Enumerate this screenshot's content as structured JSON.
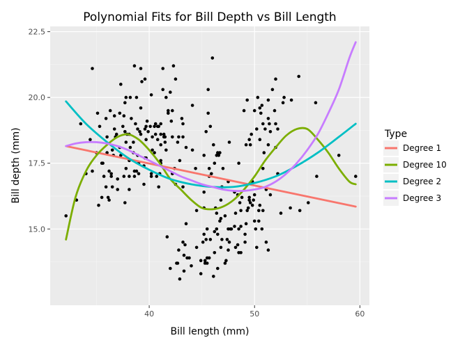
{
  "chart_data": {
    "type": "scatter",
    "title": "Polynomial Fits for Bill Depth vs Bill Length",
    "xlabel": "Bill length (mm)",
    "ylabel": "Bill depth (mm)",
    "xlim": [
      30.6,
      60.9
    ],
    "ylim": [
      12.1,
      22.7
    ],
    "x_ticks": [
      40,
      50,
      60
    ],
    "y_ticks": [
      15.0,
      17.5,
      20.0,
      22.5
    ],
    "x_tick_labels": [
      "40",
      "50",
      "60"
    ],
    "y_tick_labels": [
      "15.0",
      "17.5",
      "20.0",
      "22.5"
    ],
    "grid": true,
    "legend": {
      "title": "Type",
      "position": "right",
      "entries": [
        {
          "label": "Degree 1",
          "color": "#F8766D"
        },
        {
          "label": "Degree 10",
          "color": "#7CAE00"
        },
        {
          "label": "Degree 2",
          "color": "#00BFC4"
        },
        {
          "label": "Degree 3",
          "color": "#C77CFF"
        }
      ]
    },
    "points": [
      [
        32.1,
        15.5
      ],
      [
        33.1,
        16.1
      ],
      [
        33.5,
        19.0
      ],
      [
        34.0,
        17.1
      ],
      [
        34.4,
        18.4
      ],
      [
        34.6,
        21.1
      ],
      [
        34.6,
        17.2
      ],
      [
        35.0,
        17.9
      ],
      [
        35.1,
        19.4
      ],
      [
        35.2,
        15.9
      ],
      [
        35.3,
        18.9
      ],
      [
        35.5,
        17.5
      ],
      [
        35.5,
        16.2
      ],
      [
        35.6,
        17.5
      ],
      [
        35.7,
        17.0
      ],
      [
        35.9,
        19.2
      ],
      [
        35.9,
        16.6
      ],
      [
        36.0,
        17.9
      ],
      [
        36.0,
        18.5
      ],
      [
        36.1,
        16.2
      ],
      [
        36.2,
        16.1
      ],
      [
        36.2,
        17.2
      ],
      [
        36.3,
        19.5
      ],
      [
        36.4,
        17.1
      ],
      [
        36.4,
        17.0
      ],
      [
        36.5,
        16.6
      ],
      [
        36.5,
        18.0
      ],
      [
        36.6,
        17.8
      ],
      [
        36.7,
        19.3
      ],
      [
        36.7,
        18.8
      ],
      [
        36.8,
        18.5
      ],
      [
        36.9,
        18.6
      ],
      [
        37.0,
        16.9
      ],
      [
        37.0,
        16.5
      ],
      [
        37.2,
        18.1
      ],
      [
        37.2,
        19.4
      ],
      [
        37.3,
        17.8
      ],
      [
        37.3,
        20.5
      ],
      [
        37.5,
        18.9
      ],
      [
        37.6,
        19.3
      ],
      [
        37.6,
        17.0
      ],
      [
        37.7,
        18.7
      ],
      [
        37.7,
        16.0
      ],
      [
        37.7,
        19.8
      ],
      [
        37.8,
        18.3
      ],
      [
        37.8,
        17.3
      ],
      [
        37.8,
        20.0
      ],
      [
        37.9,
        18.6
      ],
      [
        38.1,
        18.6
      ],
      [
        38.1,
        16.5
      ],
      [
        38.1,
        17.0
      ],
      [
        38.1,
        17.6
      ],
      [
        38.2,
        18.1
      ],
      [
        38.2,
        20.0
      ],
      [
        38.3,
        19.2
      ],
      [
        38.5,
        17.9
      ],
      [
        38.5,
        18.3
      ],
      [
        38.6,
        21.2
      ],
      [
        38.6,
        17.2
      ],
      [
        38.6,
        17.0
      ],
      [
        38.7,
        19.0
      ],
      [
        38.8,
        17.2
      ],
      [
        38.8,
        20.0
      ],
      [
        38.9,
        18.8
      ],
      [
        38.9,
        17.8
      ],
      [
        39.0,
        17.1
      ],
      [
        39.0,
        17.5
      ],
      [
        39.1,
        18.7
      ],
      [
        39.2,
        19.6
      ],
      [
        39.2,
        18.6
      ],
      [
        39.2,
        21.1
      ],
      [
        39.3,
        20.6
      ],
      [
        39.5,
        16.7
      ],
      [
        39.5,
        17.4
      ],
      [
        39.6,
        17.7
      ],
      [
        39.6,
        18.8
      ],
      [
        39.6,
        20.7
      ],
      [
        39.7,
        18.4
      ],
      [
        39.7,
        17.7
      ],
      [
        39.7,
        18.9
      ],
      [
        39.8,
        19.1
      ],
      [
        39.9,
        18.7
      ],
      [
        40.1,
        18.9
      ],
      [
        40.2,
        17.0
      ],
      [
        40.2,
        17.1
      ],
      [
        40.2,
        20.1
      ],
      [
        40.3,
        18.0
      ],
      [
        40.3,
        18.5
      ],
      [
        40.5,
        18.9
      ],
      [
        40.5,
        17.9
      ],
      [
        40.6,
        18.6
      ],
      [
        40.6,
        19.0
      ],
      [
        40.7,
        17.0
      ],
      [
        40.8,
        18.4
      ],
      [
        40.8,
        18.9
      ],
      [
        40.9,
        16.6
      ],
      [
        40.9,
        18.9
      ],
      [
        41.0,
        17.1
      ],
      [
        41.1,
        18.2
      ],
      [
        41.1,
        19.0
      ],
      [
        41.1,
        17.5
      ],
      [
        41.1,
        18.6
      ],
      [
        41.1,
        17.6
      ],
      [
        41.3,
        20.3
      ],
      [
        41.3,
        21.1
      ],
      [
        41.4,
        18.5
      ],
      [
        41.4,
        18.6
      ],
      [
        41.5,
        18.3
      ],
      [
        41.5,
        18.5
      ],
      [
        41.6,
        18.0
      ],
      [
        41.6,
        20.0
      ],
      [
        41.7,
        14.7
      ],
      [
        41.8,
        19.4
      ],
      [
        41.8,
        19.5
      ],
      [
        42.0,
        20.2
      ],
      [
        42.0,
        13.5
      ],
      [
        42.1,
        19.1
      ],
      [
        42.2,
        17.1
      ],
      [
        42.2,
        18.5
      ],
      [
        42.2,
        19.5
      ],
      [
        42.3,
        21.2
      ],
      [
        42.4,
        17.3
      ],
      [
        42.5,
        20.7
      ],
      [
        42.5,
        16.7
      ],
      [
        42.6,
        13.7
      ],
      [
        42.7,
        18.3
      ],
      [
        42.7,
        13.7
      ],
      [
        42.8,
        14.2
      ],
      [
        42.8,
        18.5
      ],
      [
        42.9,
        13.1
      ],
      [
        42.9,
        17.6
      ],
      [
        43.1,
        19.2
      ],
      [
        43.2,
        19.0
      ],
      [
        43.2,
        16.6
      ],
      [
        43.2,
        14.5
      ],
      [
        43.2,
        18.5
      ],
      [
        43.3,
        13.4
      ],
      [
        43.3,
        14.0
      ],
      [
        43.4,
        14.4
      ],
      [
        43.5,
        18.1
      ],
      [
        43.5,
        15.2
      ],
      [
        43.6,
        13.9
      ],
      [
        43.8,
        13.9
      ],
      [
        44.0,
        13.6
      ],
      [
        44.1,
        18.0
      ],
      [
        44.1,
        19.7
      ],
      [
        44.4,
        17.3
      ],
      [
        44.5,
        14.3
      ],
      [
        44.5,
        15.7
      ],
      [
        44.9,
        13.8
      ],
      [
        44.9,
        13.3
      ],
      [
        45.1,
        14.5
      ],
      [
        45.2,
        14.8
      ],
      [
        45.2,
        16.4
      ],
      [
        45.2,
        17.8
      ],
      [
        45.2,
        15.8
      ],
      [
        45.3,
        13.7
      ],
      [
        45.3,
        13.8
      ],
      [
        45.4,
        14.6
      ],
      [
        45.4,
        18.7
      ],
      [
        45.5,
        13.7
      ],
      [
        45.5,
        15.0
      ],
      [
        45.5,
        13.9
      ],
      [
        45.6,
        20.3
      ],
      [
        45.6,
        19.4
      ],
      [
        45.7,
        13.9
      ],
      [
        45.7,
        17.3
      ],
      [
        45.7,
        17.0
      ],
      [
        45.8,
        14.6
      ],
      [
        45.8,
        18.9
      ],
      [
        45.9,
        17.1
      ],
      [
        46.0,
        21.5
      ],
      [
        46.1,
        13.2
      ],
      [
        46.1,
        18.2
      ],
      [
        46.2,
        14.1
      ],
      [
        46.2,
        17.5
      ],
      [
        46.2,
        14.9
      ],
      [
        46.3,
        15.8
      ],
      [
        46.4,
        15.0
      ],
      [
        46.4,
        17.8
      ],
      [
        46.4,
        15.6
      ],
      [
        46.5,
        13.5
      ],
      [
        46.5,
        17.9
      ],
      [
        46.5,
        14.8
      ],
      [
        46.6,
        17.8
      ],
      [
        46.7,
        15.3
      ],
      [
        46.7,
        17.9
      ],
      [
        46.8,
        14.3
      ],
      [
        46.8,
        15.4
      ],
      [
        46.8,
        16.1
      ],
      [
        46.9,
        14.6
      ],
      [
        46.9,
        16.6
      ],
      [
        47.0,
        17.3
      ],
      [
        47.2,
        13.7
      ],
      [
        47.2,
        15.5
      ],
      [
        47.3,
        13.8
      ],
      [
        47.4,
        14.6
      ],
      [
        47.5,
        14.2
      ],
      [
        47.5,
        15.0
      ],
      [
        47.5,
        16.8
      ],
      [
        47.6,
        14.5
      ],
      [
        47.6,
        18.3
      ],
      [
        47.7,
        15.0
      ],
      [
        47.8,
        15.0
      ],
      [
        48.1,
        15.1
      ],
      [
        48.1,
        16.4
      ],
      [
        48.2,
        15.6
      ],
      [
        48.2,
        14.3
      ],
      [
        48.4,
        14.4
      ],
      [
        48.4,
        16.3
      ],
      [
        48.5,
        14.1
      ],
      [
        48.5,
        15.0
      ],
      [
        48.5,
        17.5
      ],
      [
        48.6,
        16.0
      ],
      [
        48.7,
        14.1
      ],
      [
        48.7,
        15.1
      ],
      [
        48.7,
        15.7
      ],
      [
        48.8,
        16.2
      ],
      [
        49.0,
        19.5
      ],
      [
        49.1,
        14.8
      ],
      [
        49.1,
        14.5
      ],
      [
        49.2,
        15.2
      ],
      [
        49.2,
        18.2
      ],
      [
        49.3,
        15.7
      ],
      [
        49.3,
        19.9
      ],
      [
        49.4,
        15.8
      ],
      [
        49.5,
        16.1
      ],
      [
        49.5,
        18.4
      ],
      [
        49.5,
        16.2
      ],
      [
        49.6,
        16.0
      ],
      [
        49.6,
        18.2
      ],
      [
        49.7,
        18.6
      ],
      [
        49.8,
        15.9
      ],
      [
        49.8,
        16.8
      ],
      [
        49.9,
        16.1
      ],
      [
        50.0,
        15.3
      ],
      [
        50.0,
        16.3
      ],
      [
        50.0,
        19.5
      ],
      [
        50.1,
        15.0
      ],
      [
        50.2,
        14.3
      ],
      [
        50.2,
        18.8
      ],
      [
        50.3,
        20.0
      ],
      [
        50.4,
        15.7
      ],
      [
        50.4,
        15.3
      ],
      [
        50.5,
        15.9
      ],
      [
        50.5,
        19.6
      ],
      [
        50.5,
        18.4
      ],
      [
        50.6,
        19.4
      ],
      [
        50.7,
        15.0
      ],
      [
        50.7,
        19.7
      ],
      [
        50.8,
        15.7
      ],
      [
        50.8,
        17.3
      ],
      [
        50.8,
        19.0
      ],
      [
        50.9,
        17.9
      ],
      [
        51.0,
        18.8
      ],
      [
        51.1,
        16.5
      ],
      [
        51.1,
        14.5
      ],
      [
        51.3,
        19.2
      ],
      [
        51.3,
        18.2
      ],
      [
        51.3,
        19.9
      ],
      [
        51.3,
        14.2
      ],
      [
        51.4,
        19.0
      ],
      [
        51.5,
        16.3
      ],
      [
        51.5,
        18.7
      ],
      [
        51.7,
        20.3
      ],
      [
        51.9,
        19.5
      ],
      [
        52.0,
        18.1
      ],
      [
        52.0,
        19.0
      ],
      [
        52.0,
        20.7
      ],
      [
        52.2,
        17.1
      ],
      [
        52.2,
        18.8
      ],
      [
        52.5,
        15.6
      ],
      [
        52.7,
        19.8
      ],
      [
        52.8,
        20.0
      ],
      [
        53.4,
        15.8
      ],
      [
        53.5,
        19.9
      ],
      [
        54.2,
        20.8
      ],
      [
        54.3,
        15.7
      ],
      [
        55.1,
        16.0
      ],
      [
        55.8,
        19.8
      ],
      [
        55.9,
        17.0
      ],
      [
        58.0,
        17.8
      ],
      [
        59.6,
        17.0
      ]
    ],
    "series": [
      {
        "name": "Degree 1",
        "color": "#F8766D",
        "x": [
          32.1,
          59.6
        ],
        "y": [
          18.15,
          15.85
        ]
      },
      {
        "name": "Degree 10",
        "color": "#7CAE00",
        "x": [
          32.1,
          33.0,
          34.0,
          35.0,
          36.0,
          37.0,
          38.0,
          39.0,
          40.0,
          41.0,
          42.0,
          43.0,
          44.0,
          45.0,
          46.0,
          47.0,
          48.0,
          49.0,
          50.0,
          51.0,
          52.0,
          53.0,
          54.0,
          55.0,
          56.0,
          57.0,
          58.0,
          59.0,
          59.6
        ],
        "y": [
          14.6,
          16.2,
          17.2,
          17.8,
          18.2,
          18.5,
          18.6,
          18.4,
          18.0,
          17.5,
          16.9,
          16.5,
          16.1,
          15.8,
          15.75,
          15.85,
          16.1,
          16.5,
          17.0,
          17.6,
          18.1,
          18.55,
          18.8,
          18.8,
          18.4,
          17.9,
          17.3,
          16.8,
          16.7
        ]
      },
      {
        "name": "Degree 2",
        "color": "#00BFC4",
        "x": [
          32.1,
          34.0,
          36.0,
          38.0,
          40.0,
          42.0,
          44.0,
          46.0,
          48.0,
          50.0,
          52.0,
          54.0,
          56.0,
          58.0,
          59.6
        ],
        "y": [
          19.85,
          19.0,
          18.3,
          17.7,
          17.25,
          16.9,
          16.7,
          16.6,
          16.6,
          16.75,
          17.0,
          17.4,
          17.9,
          18.5,
          19.0
        ]
      },
      {
        "name": "Degree 3",
        "color": "#C77CFF",
        "x": [
          32.1,
          33.0,
          34.0,
          35.0,
          36.0,
          37.0,
          38.0,
          39.0,
          40.0,
          41.0,
          42.0,
          43.0,
          44.0,
          45.0,
          46.0,
          47.0,
          48.0,
          49.0,
          50.0,
          51.0,
          52.0,
          53.0,
          54.0,
          55.0,
          56.0,
          57.0,
          58.0,
          59.0,
          59.6
        ],
        "y": [
          18.15,
          18.25,
          18.3,
          18.3,
          18.25,
          18.15,
          18.0,
          17.8,
          17.6,
          17.4,
          17.2,
          17.0,
          16.85,
          16.7,
          16.6,
          16.5,
          16.45,
          16.45,
          16.5,
          16.6,
          16.8,
          17.1,
          17.5,
          18.0,
          18.6,
          19.4,
          20.3,
          21.5,
          22.1
        ]
      }
    ]
  }
}
